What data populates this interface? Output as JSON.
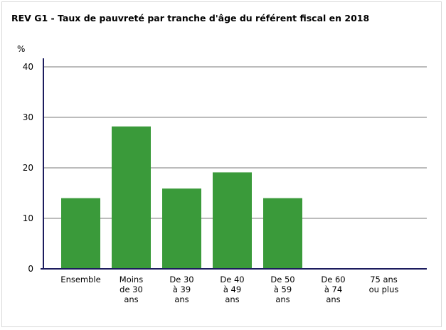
{
  "title": "REV G1 - Taux de pauvreté par tranche d'âge du référent fiscal en 2018",
  "chart_data": {
    "type": "bar",
    "title": "REV G1 - Taux de pauvreté par tranche d'âge du référent fiscal en 2018",
    "ylabel": "%",
    "xlabel": "",
    "ylim": [
      0,
      40
    ],
    "yticks": [
      0,
      10,
      20,
      30,
      40
    ],
    "grid": true,
    "categories": [
      [
        "Ensemble"
      ],
      [
        "Moins",
        "de 30",
        "ans"
      ],
      [
        "De 30",
        "à 39",
        "ans"
      ],
      [
        "De 40",
        "à 49",
        "ans"
      ],
      [
        "De 50",
        "à 59",
        "ans"
      ],
      [
        "De 60",
        "à 74",
        "ans"
      ],
      [
        "75 ans",
        "ou plus"
      ]
    ],
    "values": [
      14,
      28.2,
      15.9,
      19.1,
      14,
      null,
      null
    ],
    "colors": {
      "bar": "#3a9a3a",
      "axis": "#1c1c5e",
      "grid": "#7a7a7a"
    }
  }
}
